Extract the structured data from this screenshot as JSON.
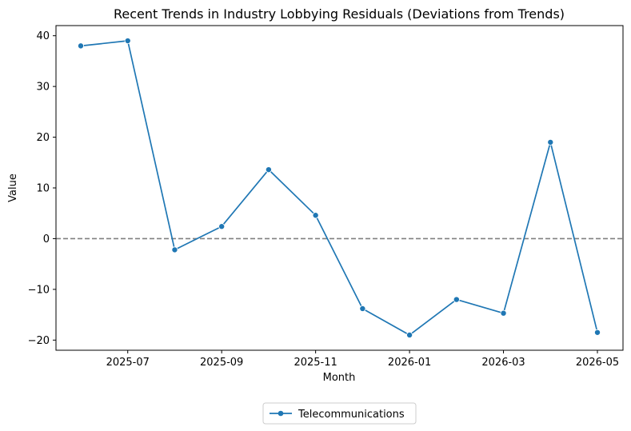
{
  "chart_data": {
    "type": "line",
    "title": "Recent Trends in Industry Lobbying Residuals (Deviations from Trends)",
    "xlabel": "Month",
    "ylabel": "Value",
    "x": [
      "2025-06",
      "2025-07",
      "2025-08",
      "2025-09",
      "2025-10",
      "2025-11",
      "2025-12",
      "2026-01",
      "2026-02",
      "2026-03",
      "2026-04",
      "2026-05"
    ],
    "series": [
      {
        "name": "Telecommunications",
        "color": "#1f77b4",
        "values": [
          38.0,
          39.0,
          -2.2,
          2.4,
          13.6,
          4.6,
          -13.8,
          -19.0,
          -12.0,
          -14.7,
          19.0,
          -18.5
        ]
      }
    ],
    "x_ticks": [
      "2025-07",
      "2025-09",
      "2025-11",
      "2026-01",
      "2026-03",
      "2026-05"
    ],
    "y_ticks": [
      -20,
      -10,
      0,
      10,
      20,
      30,
      40
    ],
    "ylim": [
      -22,
      42
    ],
    "reference_line": {
      "value": 0,
      "style": "dashed",
      "color": "#808080"
    },
    "grid": false,
    "legend_position": "bottom-center"
  }
}
